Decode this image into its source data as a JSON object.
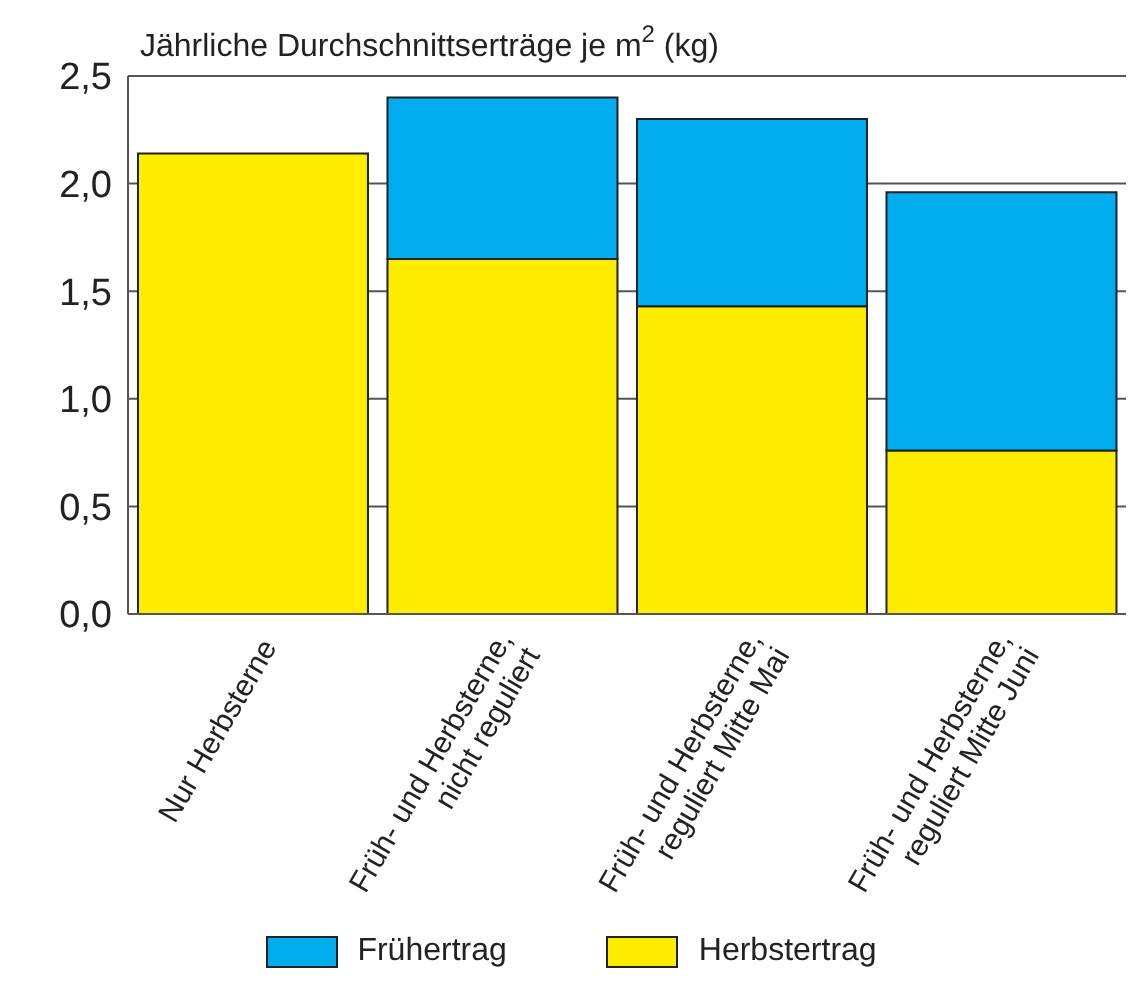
{
  "chart_data": {
    "type": "bar",
    "title": "Jährliche Durchschnittserträge je m$^{2}$ (kg)",
    "stacked": true,
    "categories": [
      "Nur Herbsterne",
      "Früh- und Herbsterne,\nnicht reguliert",
      "Früh- und Herbsterne,\nreguliert Mitte Mai",
      "Früh- und Herbsterne,\nreguliert Mitte Juni"
    ],
    "series": [
      {
        "name": "Herbstertrag",
        "color": "#ffed00",
        "values": [
          2.14,
          1.65,
          1.43,
          0.76
        ]
      },
      {
        "name": "Frühertrag",
        "color": "#00adef",
        "values": [
          null,
          0.75,
          0.87,
          1.2
        ]
      }
    ],
    "ylim": [
      0,
      2.5
    ],
    "yticks": [
      {
        "value": 0,
        "label": "0,0"
      },
      {
        "value": 0.5,
        "label": "0,5"
      },
      {
        "value": 1,
        "label": "1,0"
      },
      {
        "value": 1.5,
        "label": "1,5"
      },
      {
        "value": 2,
        "label": "2,0"
      },
      {
        "value": 2.5,
        "label": "2,5"
      }
    ],
    "grid": "y",
    "legend": "bottom"
  }
}
